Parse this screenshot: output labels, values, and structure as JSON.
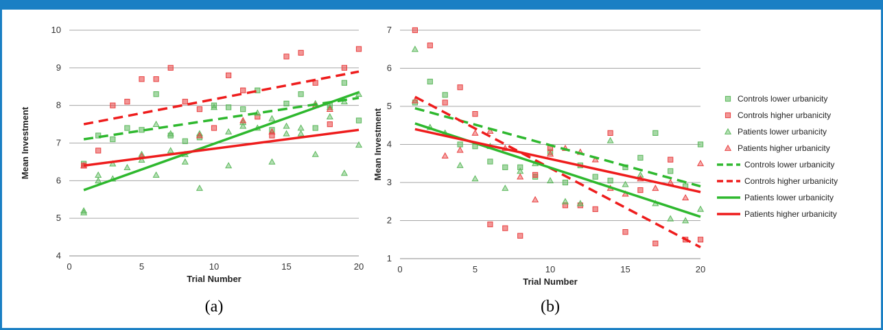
{
  "chart_data": [
    {
      "type": "scatter",
      "caption": "(a)",
      "xlabel": "Trial Number",
      "ylabel": "Mean Investment",
      "xlim": [
        0,
        20
      ],
      "ylim": [
        4,
        10
      ],
      "xticks": [
        0,
        5,
        10,
        15,
        20
      ],
      "yticks": [
        4,
        5,
        6,
        7,
        8,
        9,
        10
      ],
      "grid": "horizontal",
      "series": [
        {
          "name": "Controls lower urbanicity",
          "marker": "square",
          "color": "#5cb85c",
          "x": [
            1,
            2,
            3,
            4,
            5,
            6,
            7,
            8,
            9,
            10,
            11,
            12,
            13,
            14,
            15,
            16,
            17,
            18,
            19,
            20
          ],
          "y": [
            6.45,
            7.2,
            7.1,
            7.4,
            7.35,
            8.3,
            7.2,
            7.05,
            7.15,
            8.0,
            7.95,
            7.9,
            8.4,
            7.35,
            8.05,
            8.3,
            7.4,
            8.0,
            8.6,
            7.6
          ]
        },
        {
          "name": "Controls higher urbanicity",
          "marker": "square",
          "color": "#e84040",
          "x": [
            1,
            2,
            3,
            4,
            5,
            6,
            7,
            8,
            9,
            10,
            11,
            12,
            13,
            14,
            15,
            16,
            17,
            18,
            19,
            20
          ],
          "y": [
            6.4,
            6.8,
            8.0,
            8.1,
            8.7,
            8.7,
            9.0,
            8.1,
            7.9,
            7.4,
            8.8,
            8.4,
            7.7,
            7.2,
            9.3,
            9.4,
            8.6,
            7.5,
            9.0,
            9.5
          ]
        },
        {
          "name": "Patients lower urbanicity",
          "marker": "triangle",
          "color": "#5cb85c",
          "x": [
            1,
            1,
            2,
            2,
            3,
            3,
            4,
            5,
            5,
            6,
            6,
            7,
            7,
            8,
            8,
            9,
            9,
            10,
            11,
            11,
            12,
            12,
            13,
            13,
            14,
            14,
            15,
            15,
            16,
            16,
            17,
            17,
            18,
            18,
            19,
            19,
            20,
            20
          ],
          "y": [
            5.2,
            5.15,
            6.15,
            6.0,
            6.45,
            6.05,
            6.35,
            6.7,
            6.55,
            6.15,
            7.5,
            6.8,
            7.25,
            6.5,
            6.7,
            5.8,
            7.25,
            7.95,
            6.4,
            7.3,
            7.45,
            7.55,
            7.8,
            7.4,
            6.5,
            7.65,
            7.45,
            7.25,
            7.25,
            7.4,
            6.7,
            8.05,
            7.7,
            7.95,
            6.2,
            8.1,
            6.95,
            8.3
          ]
        },
        {
          "name": "Patients higher urbanicity",
          "marker": "triangle",
          "color": "#e84040",
          "x": [
            1,
            5,
            9,
            12,
            14,
            17,
            18
          ],
          "y": [
            6.4,
            6.65,
            7.2,
            7.6,
            7.3,
            8.0,
            7.9
          ]
        }
      ],
      "trendlines": [
        {
          "name": "Controls lower urbanicity",
          "style": "dashed",
          "color": "#2eb82e",
          "x": [
            1,
            20
          ],
          "y": [
            7.1,
            8.2
          ]
        },
        {
          "name": "Controls higher urbanicity",
          "style": "dashed",
          "color": "#ee1c1c",
          "x": [
            1,
            20
          ],
          "y": [
            7.5,
            8.9
          ]
        },
        {
          "name": "Patients lower urbanicity",
          "style": "solid",
          "color": "#2eb82e",
          "x": [
            1,
            20
          ],
          "y": [
            5.75,
            8.35
          ]
        },
        {
          "name": "Patients higher urbanicity",
          "style": "solid",
          "color": "#ee1c1c",
          "x": [
            1,
            20
          ],
          "y": [
            6.4,
            7.35
          ]
        }
      ]
    },
    {
      "type": "scatter",
      "caption": "(b)",
      "xlabel": "Trial Number",
      "ylabel": "Mean Investment",
      "xlim": [
        0,
        20
      ],
      "ylim": [
        1,
        7
      ],
      "xticks": [
        0,
        5,
        10,
        15,
        20
      ],
      "yticks": [
        1,
        2,
        3,
        4,
        5,
        6,
        7
      ],
      "grid": "horizontal",
      "legend_position": "right",
      "series": [
        {
          "name": "Controls lower urbanicity",
          "marker": "square",
          "color": "#5cb85c",
          "x": [
            1,
            2,
            3,
            4,
            5,
            6,
            7,
            8,
            9,
            10,
            11,
            12,
            13,
            14,
            15,
            16,
            17,
            18,
            19,
            20
          ],
          "y": [
            5.1,
            5.65,
            5.3,
            4.0,
            3.95,
            3.55,
            3.4,
            3.4,
            3.15,
            3.8,
            3.0,
            3.45,
            3.15,
            3.05,
            3.4,
            3.65,
            4.3,
            3.3,
            2.9,
            4.0
          ]
        },
        {
          "name": "Controls higher urbanicity",
          "marker": "square",
          "color": "#e84040",
          "x": [
            1,
            2,
            3,
            4,
            5,
            6,
            7,
            8,
            9,
            10,
            11,
            12,
            13,
            14,
            15,
            16,
            17,
            18,
            19,
            20
          ],
          "y": [
            7.0,
            6.6,
            5.1,
            5.5,
            4.8,
            1.9,
            1.8,
            1.6,
            3.2,
            3.9,
            2.4,
            2.4,
            2.3,
            4.3,
            1.7,
            2.8,
            1.4,
            3.6,
            1.5,
            1.5
          ]
        },
        {
          "name": "Patients lower urbanicity",
          "marker": "triangle",
          "color": "#5cb85c",
          "x": [
            1,
            2,
            3,
            4,
            5,
            6,
            7,
            8,
            9,
            10,
            11,
            12,
            14,
            15,
            16,
            17,
            18,
            19,
            20
          ],
          "y": [
            6.5,
            4.45,
            4.3,
            3.45,
            3.1,
            3.95,
            2.85,
            3.3,
            3.5,
            3.05,
            2.5,
            2.45,
            4.1,
            2.95,
            3.2,
            2.45,
            2.05,
            2.0,
            2.3
          ]
        },
        {
          "name": "Patients higher urbanicity",
          "marker": "triangle",
          "color": "#e84040",
          "x": [
            1,
            3,
            4,
            5,
            6,
            7,
            8,
            9,
            10,
            11,
            12,
            13,
            14,
            15,
            16,
            17,
            18,
            19,
            20
          ],
          "y": [
            5.15,
            3.7,
            3.85,
            4.3,
            4.35,
            3.9,
            3.15,
            2.55,
            3.75,
            3.9,
            3.8,
            3.6,
            2.85,
            2.7,
            3.1,
            2.85,
            3.0,
            2.6,
            3.5
          ]
        }
      ],
      "trendlines": [
        {
          "name": "Controls lower urbanicity",
          "style": "dashed",
          "color": "#2eb82e",
          "x": [
            1,
            20
          ],
          "y": [
            4.95,
            2.9
          ]
        },
        {
          "name": "Controls higher urbanicity",
          "style": "dashed",
          "color": "#ee1c1c",
          "x": [
            1,
            20
          ],
          "y": [
            5.25,
            1.3
          ]
        },
        {
          "name": "Patients lower urbanicity",
          "style": "solid",
          "color": "#2eb82e",
          "x": [
            1,
            20
          ],
          "y": [
            4.55,
            2.1
          ]
        },
        {
          "name": "Patients higher urbanicity",
          "style": "solid",
          "color": "#ee1c1c",
          "x": [
            1,
            20
          ],
          "y": [
            4.4,
            2.75
          ]
        }
      ]
    }
  ],
  "legend": [
    {
      "label": "Controls lower urbanicity",
      "kind": "marker",
      "marker": "square",
      "color": "#5cb85c"
    },
    {
      "label": "Controls higher urbanicity",
      "kind": "marker",
      "marker": "square",
      "color": "#e84040"
    },
    {
      "label": "Patients lower urbanicity",
      "kind": "marker",
      "marker": "triangle",
      "color": "#5cb85c"
    },
    {
      "label": "Patients higher urbanicity",
      "kind": "marker",
      "marker": "triangle",
      "color": "#e84040"
    },
    {
      "label": "Controls lower urbanicity",
      "kind": "line",
      "style": "dashed",
      "color": "#2eb82e"
    },
    {
      "label": "Controls higher urbanicity",
      "kind": "line",
      "style": "dashed",
      "color": "#ee1c1c"
    },
    {
      "label": "Patients lower urbanicity",
      "kind": "line",
      "style": "solid",
      "color": "#2eb82e"
    },
    {
      "label": "Patients higher urbanicity",
      "kind": "line",
      "style": "solid",
      "color": "#ee1c1c"
    }
  ],
  "colors": {
    "frame": "#1a7fc4",
    "grid": "#a6a6a6"
  }
}
